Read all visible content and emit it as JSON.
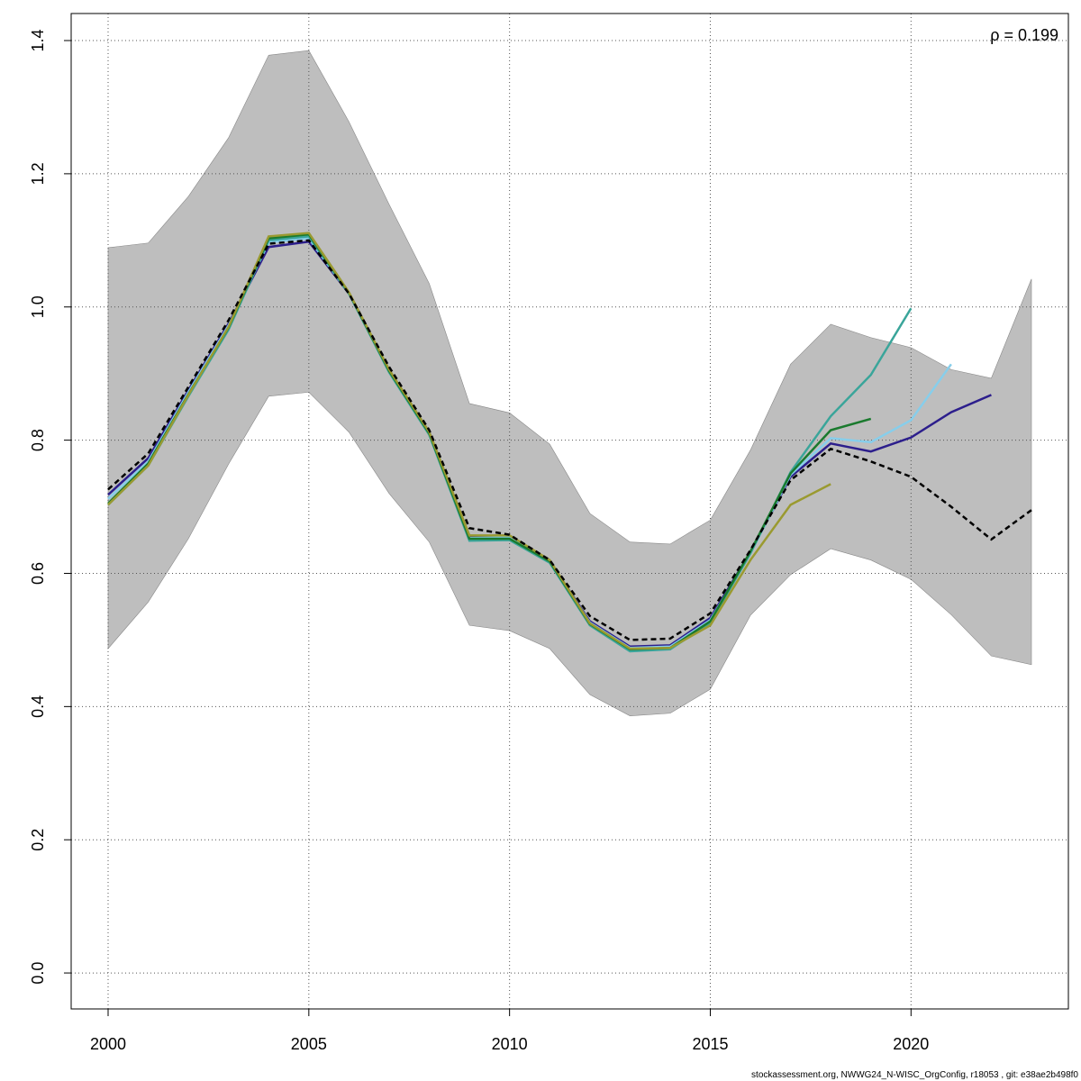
{
  "chart_data": {
    "type": "line",
    "x": [
      2000,
      2001,
      2002,
      2003,
      2004,
      2005,
      2006,
      2007,
      2008,
      2009,
      2010,
      2011,
      2012,
      2013,
      2014,
      2015,
      2016,
      2017,
      2018,
      2019,
      2020,
      2021,
      2022,
      2023
    ],
    "band": {
      "color": "#bebebe",
      "upper": [
        1.089,
        1.096,
        1.166,
        1.254,
        1.378,
        1.385,
        1.278,
        1.154,
        1.035,
        0.855,
        0.841,
        0.794,
        0.69,
        0.647,
        0.644,
        0.68,
        0.785,
        0.914,
        0.974,
        0.954,
        0.939,
        0.906,
        0.893,
        1.042
      ],
      "lower": [
        0.487,
        0.557,
        0.652,
        0.764,
        0.866,
        0.872,
        0.812,
        0.72,
        0.647,
        0.522,
        0.514,
        0.487,
        0.418,
        0.386,
        0.39,
        0.426,
        0.537,
        0.598,
        0.637,
        0.62,
        0.591,
        0.538,
        0.476,
        0.463
      ]
    },
    "series": [
      {
        "color": "#2c1e8c",
        "dash": false,
        "values": [
          0.718,
          0.773,
          0.875,
          0.975,
          1.09,
          1.098,
          1.02,
          0.905,
          0.812,
          0.655,
          0.655,
          0.618,
          0.528,
          0.49,
          0.492,
          0.533,
          0.632,
          0.745,
          0.795,
          0.783,
          0.804,
          0.842,
          0.868,
          null
        ]
      },
      {
        "color": "#87ceeb",
        "dash": false,
        "values": [
          0.712,
          0.768,
          0.872,
          0.972,
          1.097,
          1.103,
          1.02,
          0.903,
          0.81,
          0.653,
          0.654,
          0.618,
          0.526,
          0.488,
          0.49,
          0.53,
          0.63,
          0.748,
          0.803,
          0.797,
          0.83,
          0.914,
          null,
          null
        ]
      },
      {
        "color": "#3aa59a",
        "dash": false,
        "values": [
          0.703,
          0.762,
          0.866,
          0.966,
          1.1,
          1.106,
          1.02,
          0.902,
          0.808,
          0.649,
          0.65,
          0.616,
          0.522,
          0.483,
          0.486,
          0.526,
          0.63,
          0.752,
          0.836,
          0.898,
          0.998,
          null,
          null,
          null
        ]
      },
      {
        "color": "#1a7a2e",
        "dash": false,
        "values": [
          0.705,
          0.765,
          0.869,
          0.969,
          1.103,
          1.109,
          1.021,
          0.904,
          0.81,
          0.652,
          0.652,
          0.618,
          0.524,
          0.486,
          0.488,
          0.528,
          0.633,
          0.75,
          0.815,
          0.832,
          null,
          null,
          null,
          null
        ]
      },
      {
        "color": "#9a9a30",
        "dash": false,
        "values": [
          0.703,
          0.762,
          0.868,
          0.97,
          1.106,
          1.111,
          1.022,
          0.906,
          0.812,
          0.657,
          0.657,
          0.62,
          0.525,
          0.487,
          0.488,
          0.522,
          0.62,
          0.703,
          0.734,
          null,
          null,
          null,
          null,
          null
        ]
      },
      {
        "color": "#000000",
        "dash": true,
        "values": [
          0.726,
          0.78,
          0.88,
          0.98,
          1.095,
          1.1,
          1.02,
          0.91,
          0.815,
          0.668,
          0.658,
          0.62,
          0.536,
          0.5,
          0.502,
          0.54,
          0.635,
          0.74,
          0.787,
          0.768,
          0.745,
          0.7,
          0.651,
          0.695
        ]
      }
    ],
    "xlim": [
      1999.08,
      2023.92
    ],
    "ylim": [
      -0.054,
      1.4406
    ],
    "xticks": [
      2000,
      2005,
      2010,
      2015,
      2020
    ],
    "yticks": [
      {
        "value": 0,
        "label": "0.0"
      },
      0.2,
      0.4,
      0.6,
      0.8,
      {
        "value": 1,
        "label": "1.0"
      },
      1.2,
      1.4
    ],
    "grid": true,
    "annotation": "ρ = 0.199",
    "footer": "stockassessment.org, NWWG24_N-WISC_OrgConfig, r18053 , git: e38ae2b498f0"
  }
}
